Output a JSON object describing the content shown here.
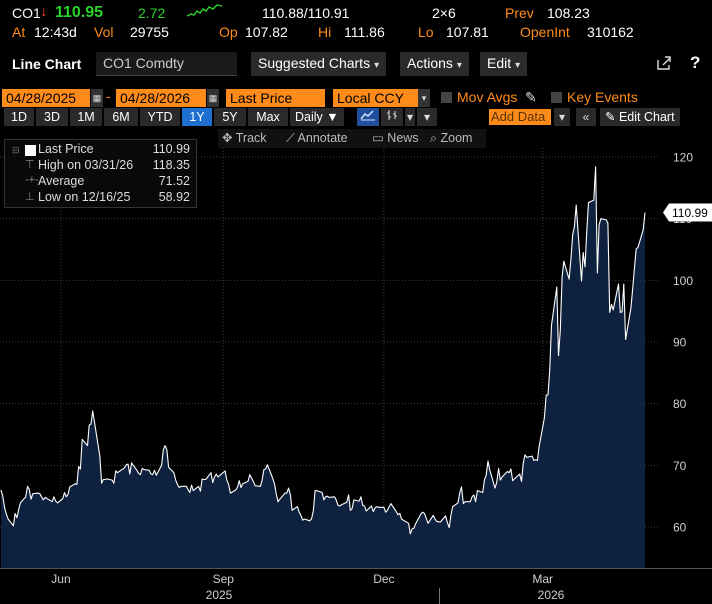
{
  "quote": {
    "ticker": "CO1",
    "direction_arrow": "down-arrow",
    "last": "110.95",
    "change": "2.72",
    "bid_ask": "110.88/110.91",
    "size": "2×6",
    "prev_label": "Prev",
    "prev": "108.23",
    "at_label": "At",
    "time": "12:43d",
    "vol_label": "Vol",
    "volume": "29755",
    "op_label": "Op",
    "open": "107.82",
    "hi_label": "Hi",
    "high": "111.86",
    "lo_label": "Lo",
    "low": "107.81",
    "oi_label": "OpenInt",
    "open_interest": "310162"
  },
  "toolbar": {
    "title": "Line Chart",
    "security": "CO1 Comdty",
    "suggested": "Suggested Charts",
    "actions": "Actions",
    "edit": "Edit",
    "share_icon": "share-icon",
    "help_icon": "?"
  },
  "fields": {
    "start_date": "04/28/2025",
    "end_date": "04/28/2026",
    "field": "Last Price",
    "currency": "Local CCY",
    "mov_avgs": "Mov Avgs",
    "key_events": "Key Events"
  },
  "periods": {
    "items": [
      "1D",
      "3D",
      "1M",
      "6M",
      "YTD",
      "1Y",
      "5Y",
      "Max"
    ],
    "active": "1Y",
    "frequency": "Daily",
    "add_data": "Add Data",
    "edit_chart": "Edit Chart"
  },
  "tools": {
    "track": "Track",
    "annotate": "Annotate",
    "news": "News",
    "zoom": "Zoom"
  },
  "legend": {
    "rows": [
      {
        "label": "Last Price",
        "value": "110.99"
      },
      {
        "label": "High on 03/31/26",
        "value": "118.35"
      },
      {
        "label": "Average",
        "value": "71.52"
      },
      {
        "label": "Low on 12/16/25",
        "value": "58.92"
      }
    ]
  },
  "colors": {
    "background": "#000000",
    "area_fill": "#0e2240",
    "line": "#ffffff",
    "grid": "#3c3c3c",
    "orange": "#ff8c1a",
    "green": "#2cd32c",
    "red": "#ff3b30",
    "active_blue": "#1f6fd1"
  },
  "chart_data": {
    "type": "area",
    "ylim": [
      54,
      124
    ],
    "y_ticks": [
      60,
      70,
      80,
      90,
      100,
      110,
      120
    ],
    "grid": "horizontal and vertical dotted",
    "last_value_label": "110.99",
    "x_tick_labels": [
      "Jun",
      "Sep",
      "Dec",
      "Mar"
    ],
    "x_tick_dates": [
      "2025-06-01",
      "2025-09-01",
      "2025-12-01",
      "2026-03-01"
    ],
    "x_year_labels": [
      "2025",
      "2026"
    ],
    "x_range": [
      "2025-04-28",
      "2026-04-28"
    ],
    "series": [
      {
        "name": "Last Price",
        "points": [
          [
            "2025-04-28",
            66.0
          ],
          [
            "2025-04-29",
            65.0
          ],
          [
            "2025-04-30",
            63.2
          ],
          [
            "2025-05-01",
            62.1
          ],
          [
            "2025-05-02",
            61.3
          ],
          [
            "2025-05-05",
            60.2
          ],
          [
            "2025-05-06",
            62.2
          ],
          [
            "2025-05-07",
            61.5
          ],
          [
            "2025-05-08",
            62.8
          ],
          [
            "2025-05-09",
            63.9
          ],
          [
            "2025-05-12",
            64.9
          ],
          [
            "2025-05-13",
            66.6
          ],
          [
            "2025-05-14",
            66.1
          ],
          [
            "2025-05-15",
            64.5
          ],
          [
            "2025-05-16",
            65.4
          ],
          [
            "2025-05-19",
            65.5
          ],
          [
            "2025-05-20",
            65.4
          ],
          [
            "2025-05-21",
            64.9
          ],
          [
            "2025-05-22",
            64.4
          ],
          [
            "2025-05-23",
            64.8
          ],
          [
            "2025-05-27",
            64.1
          ],
          [
            "2025-05-28",
            64.9
          ],
          [
            "2025-05-29",
            64.2
          ],
          [
            "2025-05-30",
            63.9
          ],
          [
            "2025-06-02",
            64.6
          ],
          [
            "2025-06-03",
            65.6
          ],
          [
            "2025-06-04",
            64.9
          ],
          [
            "2025-06-05",
            65.3
          ],
          [
            "2025-06-06",
            66.5
          ],
          [
            "2025-06-09",
            67.0
          ],
          [
            "2025-06-10",
            66.9
          ],
          [
            "2025-06-11",
            69.8
          ],
          [
            "2025-06-12",
            69.4
          ],
          [
            "2025-06-13",
            74.2
          ],
          [
            "2025-06-16",
            73.2
          ],
          [
            "2025-06-17",
            76.5
          ],
          [
            "2025-06-18",
            76.7
          ],
          [
            "2025-06-19",
            78.8
          ],
          [
            "2025-06-20",
            77.0
          ],
          [
            "2025-06-23",
            71.5
          ],
          [
            "2025-06-24",
            67.1
          ],
          [
            "2025-06-25",
            67.7
          ],
          [
            "2025-06-26",
            67.7
          ],
          [
            "2025-06-27",
            67.8
          ],
          [
            "2025-06-30",
            67.6
          ],
          [
            "2025-07-01",
            67.1
          ],
          [
            "2025-07-02",
            69.1
          ],
          [
            "2025-07-03",
            68.8
          ],
          [
            "2025-07-07",
            69.6
          ],
          [
            "2025-07-08",
            70.1
          ],
          [
            "2025-07-09",
            70.2
          ],
          [
            "2025-07-10",
            68.6
          ],
          [
            "2025-07-11",
            70.4
          ],
          [
            "2025-07-14",
            69.2
          ],
          [
            "2025-07-15",
            68.7
          ],
          [
            "2025-07-16",
            68.5
          ],
          [
            "2025-07-17",
            69.5
          ],
          [
            "2025-07-18",
            69.3
          ],
          [
            "2025-07-21",
            69.2
          ],
          [
            "2025-07-22",
            68.6
          ],
          [
            "2025-07-23",
            68.5
          ],
          [
            "2025-07-24",
            69.2
          ],
          [
            "2025-07-25",
            68.4
          ],
          [
            "2025-07-28",
            70.0
          ],
          [
            "2025-07-29",
            72.5
          ],
          [
            "2025-07-30",
            73.2
          ],
          [
            "2025-07-31",
            72.5
          ],
          [
            "2025-08-01",
            69.7
          ],
          [
            "2025-08-04",
            68.8
          ],
          [
            "2025-08-05",
            67.6
          ],
          [
            "2025-08-06",
            66.9
          ],
          [
            "2025-08-07",
            66.4
          ],
          [
            "2025-08-08",
            66.6
          ],
          [
            "2025-08-11",
            66.6
          ],
          [
            "2025-08-12",
            66.1
          ],
          [
            "2025-08-13",
            65.6
          ],
          [
            "2025-08-14",
            66.8
          ],
          [
            "2025-08-15",
            65.9
          ],
          [
            "2025-08-18",
            66.6
          ],
          [
            "2025-08-19",
            65.8
          ],
          [
            "2025-08-20",
            67.8
          ],
          [
            "2025-08-21",
            67.7
          ],
          [
            "2025-08-22",
            67.7
          ],
          [
            "2025-08-25",
            68.8
          ],
          [
            "2025-08-26",
            67.2
          ],
          [
            "2025-08-27",
            68.1
          ],
          [
            "2025-08-28",
            68.6
          ],
          [
            "2025-08-29",
            68.1
          ],
          [
            "2025-09-02",
            69.1
          ],
          [
            "2025-09-03",
            67.6
          ],
          [
            "2025-09-04",
            66.9
          ],
          [
            "2025-09-05",
            65.5
          ],
          [
            "2025-09-08",
            66.0
          ],
          [
            "2025-09-09",
            66.4
          ],
          [
            "2025-09-10",
            67.5
          ],
          [
            "2025-09-11",
            66.4
          ],
          [
            "2025-09-12",
            67.0
          ],
          [
            "2025-09-15",
            67.4
          ],
          [
            "2025-09-16",
            68.5
          ],
          [
            "2025-09-17",
            68.0
          ],
          [
            "2025-09-18",
            67.4
          ],
          [
            "2025-09-19",
            66.7
          ],
          [
            "2025-09-22",
            66.6
          ],
          [
            "2025-09-23",
            67.6
          ],
          [
            "2025-09-24",
            69.3
          ],
          [
            "2025-09-25",
            69.4
          ],
          [
            "2025-09-26",
            70.1
          ],
          [
            "2025-09-29",
            67.9
          ],
          [
            "2025-09-30",
            67.0
          ],
          [
            "2025-10-01",
            65.4
          ],
          [
            "2025-10-02",
            64.1
          ],
          [
            "2025-10-03",
            64.5
          ],
          [
            "2025-10-06",
            65.5
          ],
          [
            "2025-10-07",
            65.5
          ],
          [
            "2025-10-08",
            66.3
          ],
          [
            "2025-10-09",
            65.2
          ],
          [
            "2025-10-10",
            62.7
          ],
          [
            "2025-10-13",
            63.3
          ],
          [
            "2025-10-14",
            62.4
          ],
          [
            "2025-10-15",
            61.9
          ],
          [
            "2025-10-16",
            61.1
          ],
          [
            "2025-10-17",
            61.3
          ],
          [
            "2025-10-20",
            61.0
          ],
          [
            "2025-10-21",
            61.3
          ],
          [
            "2025-10-22",
            62.6
          ],
          [
            "2025-10-23",
            65.9
          ],
          [
            "2025-10-24",
            65.9
          ],
          [
            "2025-10-27",
            65.6
          ],
          [
            "2025-10-28",
            64.4
          ],
          [
            "2025-10-29",
            64.9
          ],
          [
            "2025-10-30",
            65.0
          ],
          [
            "2025-10-31",
            64.8
          ],
          [
            "2025-11-03",
            64.9
          ],
          [
            "2025-11-04",
            64.4
          ],
          [
            "2025-11-05",
            63.5
          ],
          [
            "2025-11-06",
            63.4
          ],
          [
            "2025-11-07",
            63.6
          ],
          [
            "2025-11-10",
            64.0
          ],
          [
            "2025-11-11",
            65.2
          ],
          [
            "2025-11-12",
            62.7
          ],
          [
            "2025-11-13",
            63.0
          ],
          [
            "2025-11-14",
            64.4
          ],
          [
            "2025-11-17",
            64.2
          ],
          [
            "2025-11-18",
            64.9
          ],
          [
            "2025-11-19",
            63.5
          ],
          [
            "2025-11-20",
            63.4
          ],
          [
            "2025-11-21",
            62.6
          ],
          [
            "2025-11-24",
            63.4
          ],
          [
            "2025-11-25",
            62.5
          ],
          [
            "2025-11-26",
            63.1
          ],
          [
            "2025-11-27",
            63.3
          ],
          [
            "2025-11-28",
            63.2
          ],
          [
            "2025-12-01",
            63.2
          ],
          [
            "2025-12-02",
            62.4
          ],
          [
            "2025-12-03",
            62.7
          ],
          [
            "2025-12-04",
            63.3
          ],
          [
            "2025-12-05",
            63.8
          ],
          [
            "2025-12-08",
            62.5
          ],
          [
            "2025-12-09",
            62.0
          ],
          [
            "2025-12-10",
            62.2
          ],
          [
            "2025-12-11",
            61.3
          ],
          [
            "2025-12-12",
            61.1
          ],
          [
            "2025-12-15",
            60.6
          ],
          [
            "2025-12-16",
            58.9
          ],
          [
            "2025-12-17",
            59.7
          ],
          [
            "2025-12-18",
            59.8
          ],
          [
            "2025-12-19",
            60.5
          ],
          [
            "2025-12-22",
            62.1
          ],
          [
            "2025-12-23",
            62.4
          ],
          [
            "2025-12-24",
            62.2
          ],
          [
            "2025-12-26",
            60.6
          ],
          [
            "2025-12-29",
            61.9
          ],
          [
            "2025-12-30",
            61.3
          ],
          [
            "2025-12-31",
            60.9
          ],
          [
            "2026-01-02",
            60.8
          ],
          [
            "2026-01-05",
            61.8
          ],
          [
            "2026-01-06",
            60.7
          ],
          [
            "2026-01-07",
            59.9
          ],
          [
            "2026-01-08",
            61.9
          ],
          [
            "2026-01-09",
            63.3
          ],
          [
            "2026-01-12",
            63.9
          ],
          [
            "2026-01-13",
            65.5
          ],
          [
            "2026-01-14",
            66.5
          ],
          [
            "2026-01-15",
            63.8
          ],
          [
            "2026-01-16",
            64.1
          ],
          [
            "2026-01-19",
            64.1
          ],
          [
            "2026-01-20",
            64.9
          ],
          [
            "2026-01-21",
            65.2
          ],
          [
            "2026-01-22",
            64.1
          ],
          [
            "2026-01-23",
            65.9
          ],
          [
            "2026-01-26",
            65.6
          ],
          [
            "2026-01-27",
            67.6
          ],
          [
            "2026-01-28",
            68.4
          ],
          [
            "2026-01-29",
            70.7
          ],
          [
            "2026-01-30",
            69.3
          ],
          [
            "2026-02-02",
            66.3
          ],
          [
            "2026-02-03",
            67.3
          ],
          [
            "2026-02-04",
            69.5
          ],
          [
            "2026-02-05",
            67.6
          ],
          [
            "2026-02-06",
            68.1
          ],
          [
            "2026-02-09",
            69.0
          ],
          [
            "2026-02-10",
            68.8
          ],
          [
            "2026-02-11",
            69.4
          ],
          [
            "2026-02-12",
            67.5
          ],
          [
            "2026-02-13",
            67.8
          ],
          [
            "2026-02-16",
            68.6
          ],
          [
            "2026-02-17",
            67.4
          ],
          [
            "2026-02-18",
            70.4
          ],
          [
            "2026-02-19",
            71.7
          ],
          [
            "2026-02-20",
            71.3
          ],
          [
            "2026-02-23",
            71.5
          ],
          [
            "2026-02-24",
            70.8
          ],
          [
            "2026-02-25",
            70.9
          ],
          [
            "2026-02-26",
            70.8
          ],
          [
            "2026-02-27",
            73.0
          ],
          [
            "2026-03-02",
            77.7
          ],
          [
            "2026-03-03",
            81.4
          ],
          [
            "2026-03-04",
            81.4
          ],
          [
            "2026-03-05",
            85.4
          ],
          [
            "2026-03-06",
            92.7
          ],
          [
            "2026-03-09",
            98.9
          ],
          [
            "2026-03-10",
            87.8
          ],
          [
            "2026-03-11",
            91.9
          ],
          [
            "2026-03-12",
            100.5
          ],
          [
            "2026-03-13",
            103.1
          ],
          [
            "2026-03-16",
            100.2
          ],
          [
            "2026-03-17",
            103.4
          ],
          [
            "2026-03-18",
            107.4
          ],
          [
            "2026-03-19",
            108.7
          ],
          [
            "2026-03-20",
            112.2
          ],
          [
            "2026-03-23",
            99.9
          ],
          [
            "2026-03-24",
            104.5
          ],
          [
            "2026-03-25",
            102.2
          ],
          [
            "2026-03-26",
            108.0
          ],
          [
            "2026-03-27",
            112.6
          ],
          [
            "2026-03-30",
            113.0
          ],
          [
            "2026-03-31",
            118.4
          ],
          [
            "2026-04-01",
            101.2
          ],
          [
            "2026-04-02",
            109.0
          ],
          [
            "2026-04-03",
            110.0
          ],
          [
            "2026-04-06",
            109.8
          ],
          [
            "2026-04-07",
            109.3
          ],
          [
            "2026-04-08",
            94.8
          ],
          [
            "2026-04-09",
            96.1
          ],
          [
            "2026-04-10",
            95.2
          ],
          [
            "2026-04-13",
            99.4
          ],
          [
            "2026-04-14",
            94.8
          ],
          [
            "2026-04-15",
            94.9
          ],
          [
            "2026-04-16",
            99.4
          ],
          [
            "2026-04-17",
            90.4
          ],
          [
            "2026-04-20",
            95.5
          ],
          [
            "2026-04-21",
            98.5
          ],
          [
            "2026-04-22",
            101.9
          ],
          [
            "2026-04-23",
            105.1
          ],
          [
            "2026-04-24",
            105.3
          ],
          [
            "2026-04-27",
            108.2
          ],
          [
            "2026-04-28",
            110.99
          ]
        ]
      }
    ]
  }
}
